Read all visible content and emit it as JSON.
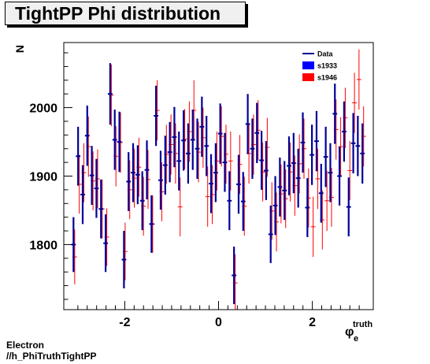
{
  "chart_data": {
    "type": "scatter",
    "title": "TightPP Phi distribution",
    "xlabel": "φ",
    "xlabel_sub": "e",
    "xlabel_sup": "truth",
    "ylabel": "N",
    "xlim": [
      -3.3,
      3.3
    ],
    "ylim": [
      1705,
      2095
    ],
    "xticks": [
      -2,
      0,
      2
    ],
    "yticks": [
      1800,
      1900,
      2000
    ],
    "bin_half_width": 0.049,
    "legend_placement": "top-right",
    "legend": [
      {
        "label": "Data",
        "style": "line",
        "color": "#000099"
      },
      {
        "label": "s1933",
        "style": "box",
        "color": "#0000ff"
      },
      {
        "label": "s1946",
        "style": "box",
        "color": "#ff0000"
      }
    ],
    "series": [
      {
        "name": "s1933",
        "color": "#000099",
        "x": [
          -3.093,
          -2.995,
          -2.897,
          -2.8,
          -2.702,
          -2.604,
          -2.506,
          -2.408,
          -2.311,
          -2.213,
          -2.115,
          -2.017,
          -1.919,
          -1.822,
          -1.724,
          -1.626,
          -1.528,
          -1.43,
          -1.333,
          -1.235,
          -1.137,
          -1.039,
          -0.942,
          -0.844,
          -0.746,
          -0.648,
          -0.55,
          -0.453,
          -0.355,
          -0.257,
          -0.159,
          -0.061,
          0.036,
          0.134,
          0.232,
          0.33,
          0.428,
          0.525,
          0.623,
          0.721,
          0.819,
          0.917,
          1.014,
          1.112,
          1.21,
          1.308,
          1.406,
          1.503,
          1.601,
          1.699,
          1.797,
          1.895,
          1.992,
          2.09,
          2.188,
          2.286,
          2.384,
          2.481,
          2.579,
          2.677,
          2.775,
          2.873,
          2.97,
          3.068
        ],
        "y": [
          1800,
          1929,
          1873,
          1959,
          1901,
          1882,
          1852,
          1802,
          2020,
          1953,
          1950,
          1778,
          1892,
          1905,
          1902,
          1864,
          1909,
          1830,
          1988,
          1894,
          1916,
          1935,
          1957,
          1922,
          1952,
          1933,
          1953,
          1940,
          1972,
          1944,
          1889,
          1905,
          1962,
          1920,
          1864,
          1755,
          1888,
          1863,
          1976,
          1940,
          1963,
          1923,
          1908,
          1815,
          1857,
          1884,
          1879,
          1915,
          1919,
          1897,
          1949,
          1854,
          1931,
          1951,
          1875,
          1928,
          1905,
          1991,
          1900,
          1965,
          1855,
          1948,
          1944,
          1933
        ],
        "err": [
          40,
          43,
          43,
          44,
          43,
          43,
          43,
          42,
          45,
          44,
          44,
          42,
          43,
          43,
          43,
          43,
          43,
          42,
          44,
          43,
          43,
          44,
          44,
          43,
          44,
          44,
          44,
          44,
          44,
          44,
          43,
          43,
          44,
          43,
          43,
          42,
          43,
          43,
          44,
          44,
          44,
          43,
          43,
          42,
          43,
          43,
          43,
          43,
          44,
          43,
          44,
          43,
          44,
          44,
          43,
          44,
          43,
          44,
          43,
          44,
          43,
          44,
          44,
          44
        ]
      },
      {
        "name": "s1946",
        "color": "#ff0000",
        "x": [
          -3.093,
          -2.995,
          -2.897,
          -2.8,
          -2.702,
          -2.604,
          -2.506,
          -2.408,
          -2.311,
          -2.213,
          -2.115,
          -2.017,
          -1.919,
          -1.822,
          -1.724,
          -1.626,
          -1.528,
          -1.43,
          -1.333,
          -1.235,
          -1.137,
          -1.039,
          -0.942,
          -0.844,
          -0.746,
          -0.648,
          -0.55,
          -0.453,
          -0.355,
          -0.257,
          -0.159,
          -0.061,
          0.036,
          0.134,
          0.232,
          0.33,
          0.428,
          0.525,
          0.623,
          0.721,
          0.819,
          0.917,
          1.014,
          1.112,
          1.21,
          1.308,
          1.406,
          1.503,
          1.601,
          1.699,
          1.797,
          1.895,
          1.992,
          2.09,
          2.188,
          2.286,
          2.384,
          2.481,
          2.579,
          2.677,
          2.775,
          2.873,
          2.97,
          3.068
        ],
        "y": [
          1782,
          1888,
          1905,
          1943,
          1893,
          1896,
          1852,
          1811,
          2018,
          1929,
          1949,
          1790,
          1880,
          1897,
          1913,
          1856,
          1895,
          1830,
          1996,
          1877,
          1932,
          1946,
          1933,
          1855,
          1954,
          1965,
          1996,
          1935,
          1956,
          1870,
          1873,
          1922,
          1958,
          1932,
          1922,
          1744,
          1917,
          1856,
          1933,
          1946,
          1967,
          1906,
          1942,
          1849,
          1833,
          1874,
          1867,
          1906,
          1886,
          1918,
          1940,
          1868,
          1826,
          1896,
          1836,
          1864,
          1869,
          1968,
          1943,
          1985,
          1908,
          2007,
          2041,
          1958
        ]
      }
    ]
  },
  "footer": {
    "line1": "Electron",
    "line2": "//h_PhiTruthTightPP"
  }
}
